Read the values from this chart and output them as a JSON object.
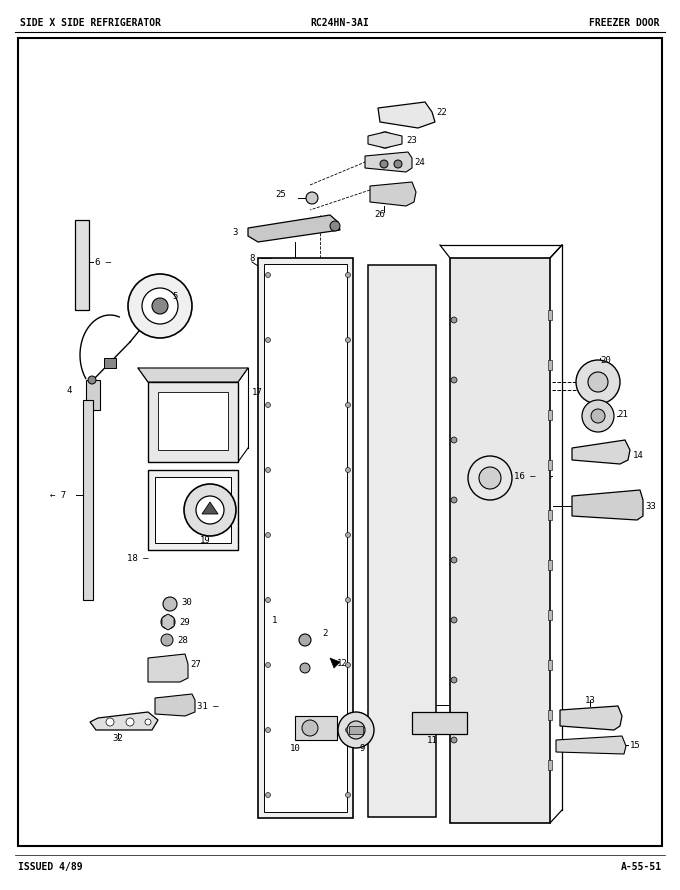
{
  "title_left": "SIDE X SIDE REFRIGERATOR",
  "title_center": "RC24HN-3AI",
  "title_right": "FREEZER DOOR",
  "footer_left": "ISSUED 4/89",
  "footer_right": "A-55-51",
  "bg_color": "#f5f5f0",
  "border_color": "#000000",
  "text_color": "#000000",
  "fig_width": 6.8,
  "fig_height": 8.9
}
